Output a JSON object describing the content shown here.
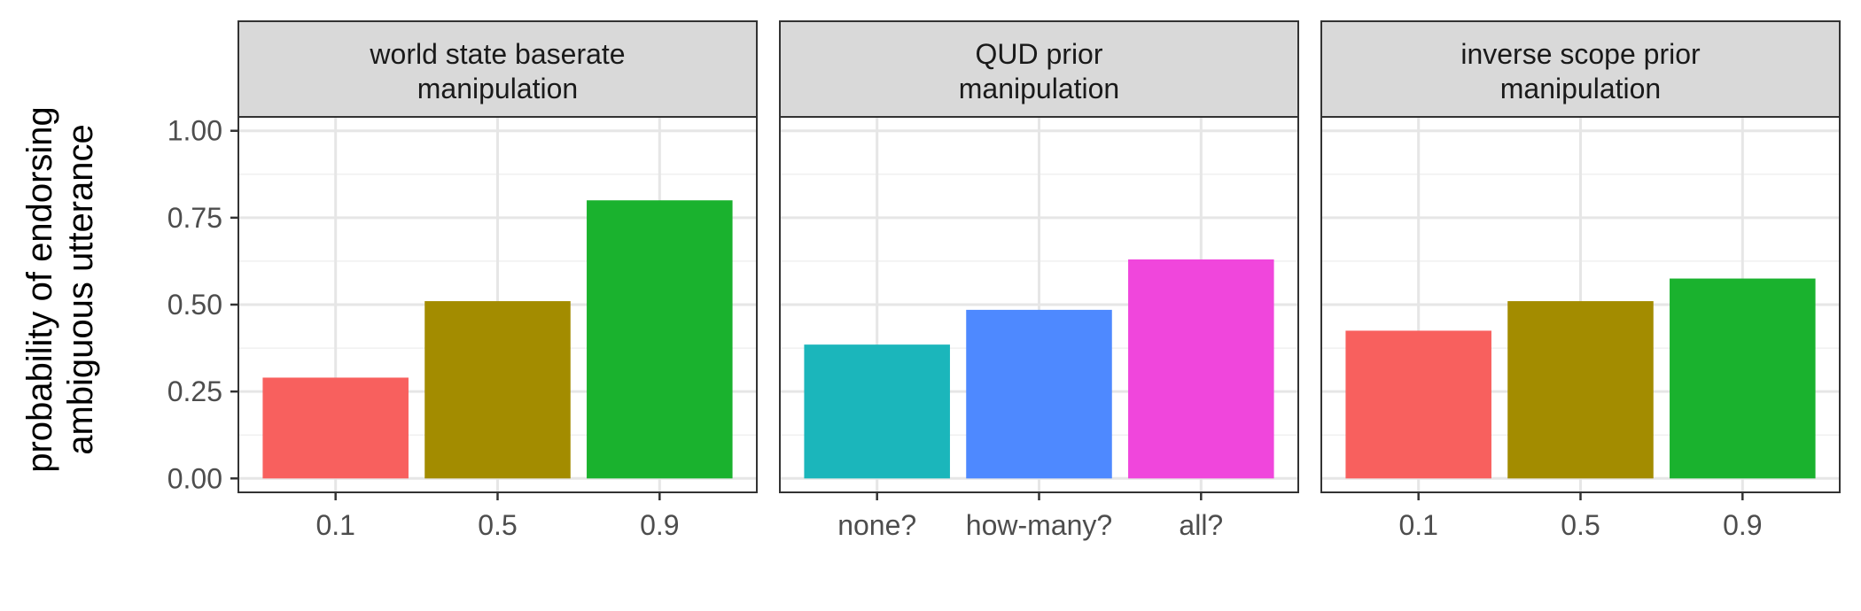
{
  "chart_data": {
    "type": "bar",
    "ylabel": [
      "probability of endorsing",
      "ambiguous utterance"
    ],
    "ylim": [
      -0.04,
      1.04
    ],
    "yticks": [
      0.0,
      0.25,
      0.5,
      0.75,
      1.0
    ],
    "ytick_labels": [
      "0.00",
      "0.25",
      "0.50",
      "0.75",
      "1.00"
    ],
    "grid": true,
    "legend": "none",
    "panels": [
      {
        "title": [
          "world state baserate",
          "manipulation"
        ],
        "categories": [
          "0.1",
          "0.5",
          "0.9"
        ],
        "values": [
          0.29,
          0.51,
          0.8
        ],
        "colors": [
          "#F8605E",
          "#A38C00",
          "#1AB22E"
        ]
      },
      {
        "title": [
          "QUD prior",
          "manipulation"
        ],
        "categories": [
          "none?",
          "how-many?",
          "all?"
        ],
        "values": [
          0.385,
          0.485,
          0.63
        ],
        "colors": [
          "#1BB6BB",
          "#4E89FF",
          "#F046DC"
        ]
      },
      {
        "title": [
          "inverse scope prior",
          "manipulation"
        ],
        "categories": [
          "0.1",
          "0.5",
          "0.9"
        ],
        "values": [
          0.425,
          0.51,
          0.575
        ],
        "colors": [
          "#F8605E",
          "#A38C00",
          "#1AB22E"
        ]
      }
    ]
  }
}
